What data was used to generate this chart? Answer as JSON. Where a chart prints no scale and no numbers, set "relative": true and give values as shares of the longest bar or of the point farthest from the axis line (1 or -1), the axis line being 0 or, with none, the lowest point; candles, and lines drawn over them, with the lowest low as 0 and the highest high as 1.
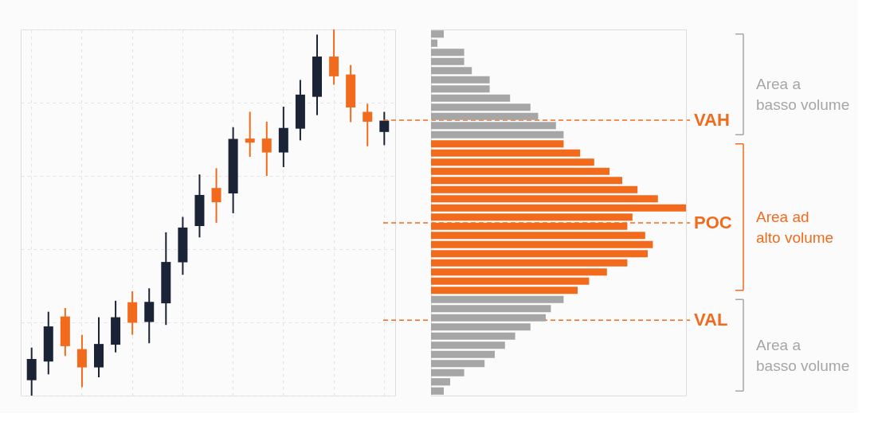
{
  "chart_data": [
    {
      "type": "candlestick",
      "relative": true,
      "grid": true,
      "categories": [
        null,
        null,
        null,
        null,
        null,
        null,
        null,
        null,
        null,
        null,
        null,
        null,
        null,
        null,
        null,
        null,
        null,
        null,
        null,
        null,
        null,
        null
      ],
      "ohlc": [
        [
          0.042,
          0.131,
          0,
          0.1
        ],
        [
          0.093,
          0.229,
          0.058,
          0.189
        ],
        [
          0.216,
          0.239,
          0.108,
          0.135
        ],
        [
          0.127,
          0.166,
          0.023,
          0.077
        ],
        [
          0.077,
          0.214,
          0.05,
          0.141
        ],
        [
          0.139,
          0.259,
          0.118,
          0.214
        ],
        [
          0.255,
          0.285,
          0.166,
          0.199
        ],
        [
          0.201,
          0.293,
          0.143,
          0.256
        ],
        [
          0.252,
          0.446,
          0.193,
          0.365
        ],
        [
          0.364,
          0.488,
          0.33,
          0.459
        ],
        [
          0.463,
          0.604,
          0.432,
          0.548
        ],
        [
          0.567,
          0.621,
          0.472,
          0.528
        ],
        [
          0.552,
          0.733,
          0.498,
          0.701
        ],
        [
          0.702,
          0.775,
          0.652,
          0.691
        ],
        [
          0.702,
          0.748,
          0.6,
          0.664
        ],
        [
          0.664,
          0.789,
          0.624,
          0.731
        ],
        [
          0.729,
          0.862,
          0.697,
          0.822
        ],
        [
          0.816,
          0.986,
          0.766,
          0.926
        ],
        [
          0.926,
          1,
          0.849,
          0.872
        ],
        [
          0.877,
          0.903,
          0.747,
          0.787
        ],
        [
          0.775,
          0.797,
          0.681,
          0.748
        ],
        [
          0.72,
          0.775,
          0.684,
          0.751
        ]
      ],
      "colors": [
        "#1b2336",
        "#1b2336",
        "#f26b1d",
        "#f26b1d",
        "#1b2336",
        "#1b2336",
        "#f26b1d",
        "#1b2336",
        "#1b2336",
        "#1b2336",
        "#1b2336",
        "#f26b1d",
        "#1b2336",
        "#f26b1d",
        "#f26b1d",
        "#1b2336",
        "#1b2336",
        "#1b2336",
        "#f26b1d",
        "#f26b1d",
        "#f26b1d",
        "#1b2336"
      ],
      "ref_lines": [
        {
          "axis": "y",
          "value": 0.752,
          "label": "VAH",
          "color": "#f26b1d",
          "line_style": "dashed"
        },
        {
          "axis": "y",
          "value": 0.472,
          "label": "POC",
          "color": "#f26b1d",
          "line_style": "dashed"
        },
        {
          "axis": "y",
          "value": 0.206,
          "label": "VAL",
          "color": "#f26b1d",
          "line_style": "dashed"
        }
      ]
    },
    {
      "type": "bar",
      "orientation": "horizontal",
      "relative": true,
      "categories": [
        null,
        null,
        null,
        null,
        null,
        null,
        null,
        null,
        null,
        null,
        null,
        null,
        null,
        null,
        null,
        null,
        null,
        null,
        null,
        null,
        null,
        null,
        null,
        null,
        null,
        null,
        null,
        null,
        null,
        null,
        null,
        null,
        null,
        null,
        null,
        null,
        null,
        null,
        null,
        null
      ],
      "values": [
        0.05,
        0.025,
        0.13,
        0.13,
        0.16,
        0.23,
        0.23,
        0.31,
        0.39,
        0.42,
        0.49,
        0.52,
        0.52,
        0.585,
        0.64,
        0.7,
        0.75,
        0.81,
        0.89,
        1,
        0.79,
        0.77,
        0.84,
        0.87,
        0.85,
        0.77,
        0.69,
        0.62,
        0.575,
        0.52,
        0.47,
        0.45,
        0.39,
        0.33,
        0.29,
        0.25,
        0.21,
        0.13,
        0.075,
        0.05
      ],
      "colors": [
        "#a6a6a6",
        "#a6a6a6",
        "#a6a6a6",
        "#a6a6a6",
        "#a6a6a6",
        "#a6a6a6",
        "#a6a6a6",
        "#a6a6a6",
        "#a6a6a6",
        "#a6a6a6",
        "#a6a6a6",
        "#a6a6a6",
        "#f26b1d",
        "#f26b1d",
        "#f26b1d",
        "#f26b1d",
        "#f26b1d",
        "#f26b1d",
        "#f26b1d",
        "#f26b1d",
        "#f26b1d",
        "#f26b1d",
        "#f26b1d",
        "#f26b1d",
        "#f26b1d",
        "#f26b1d",
        "#f26b1d",
        "#f26b1d",
        "#f26b1d",
        "#a6a6a6",
        "#a6a6a6",
        "#a6a6a6",
        "#a6a6a6",
        "#a6a6a6",
        "#a6a6a6",
        "#a6a6a6",
        "#a6a6a6",
        "#a6a6a6",
        "#a6a6a6",
        "#a6a6a6"
      ],
      "annotations": [
        "Area a basso volume",
        "Area ad alto volume",
        "Area a basso volume"
      ]
    }
  ]
}
